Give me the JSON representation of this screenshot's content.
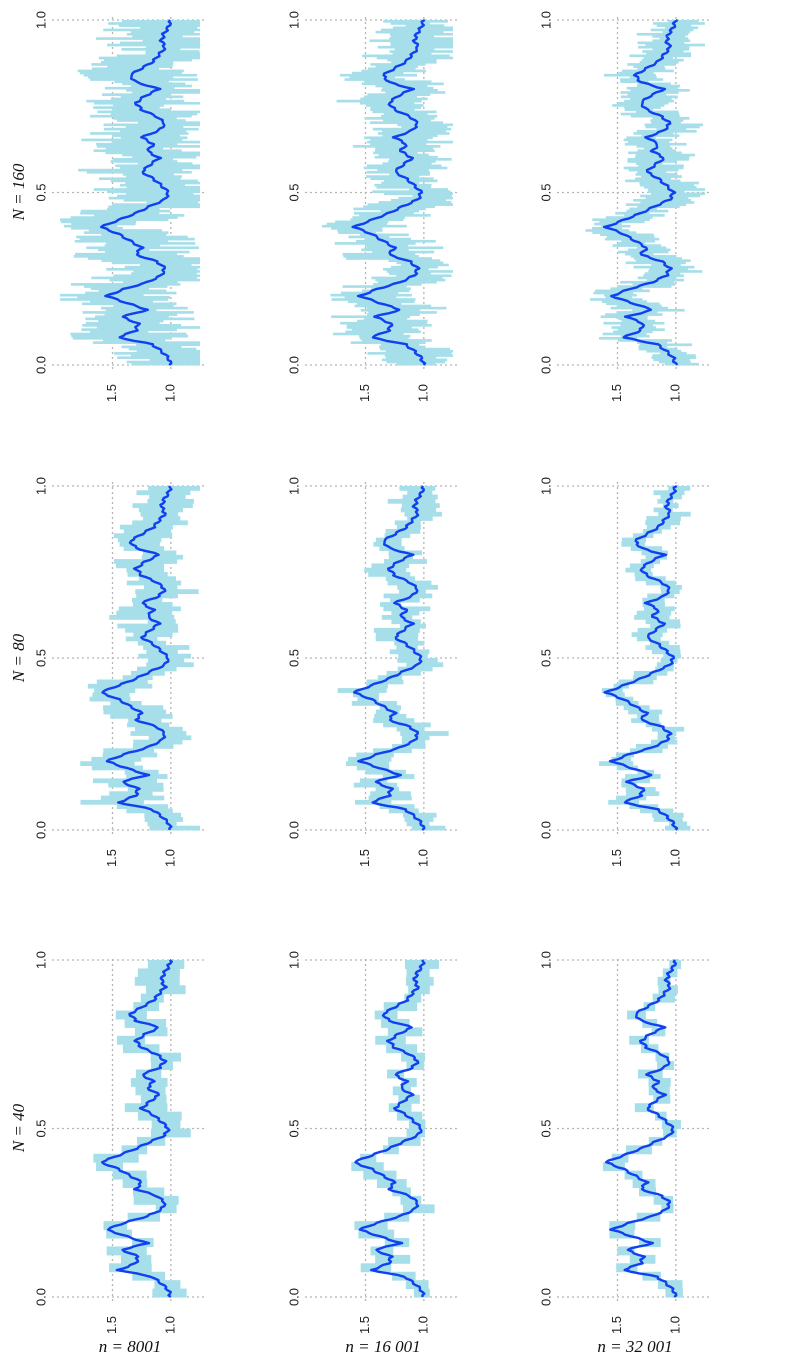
{
  "chart_data": {
    "type": "line",
    "layout": "3x3 grid of panels, figure rotated 90 degrees",
    "col_labels": [
      "n = 8001",
      "n = 16 001",
      "n = 32 001"
    ],
    "row_labels": [
      "N = 40",
      "N = 80",
      "N = 160"
    ],
    "x_ticks": [
      "0.0",
      "0.5",
      "1.0"
    ],
    "y_ticks": [
      "1.0",
      "1.5"
    ],
    "xlim": [
      0,
      1
    ],
    "ylim": [
      0.75,
      1.95
    ],
    "grid": true,
    "colors": {
      "line": "#1040f0",
      "band": "#a6dfe9",
      "grid": "#b4b4b4"
    },
    "series": {
      "center": {
        "x": [
          0.0,
          0.02,
          0.04,
          0.06,
          0.08,
          0.1,
          0.12,
          0.14,
          0.16,
          0.18,
          0.2,
          0.22,
          0.24,
          0.26,
          0.28,
          0.3,
          0.32,
          0.34,
          0.36,
          0.38,
          0.4,
          0.42,
          0.44,
          0.46,
          0.48,
          0.5,
          0.52,
          0.54,
          0.56,
          0.58,
          0.6,
          0.62,
          0.64,
          0.66,
          0.68,
          0.7,
          0.72,
          0.74,
          0.76,
          0.78,
          0.8,
          0.82,
          0.84,
          0.86,
          0.88,
          0.9,
          0.92,
          0.94,
          0.96,
          0.98,
          1.0
        ],
        "y": [
          1.0,
          1.02,
          1.08,
          1.16,
          1.45,
          1.3,
          1.28,
          1.42,
          1.2,
          1.38,
          1.55,
          1.4,
          1.2,
          1.08,
          1.05,
          1.12,
          1.3,
          1.25,
          1.35,
          1.45,
          1.6,
          1.45,
          1.3,
          1.18,
          1.05,
          1.02,
          1.08,
          1.15,
          1.25,
          1.18,
          1.1,
          1.2,
          1.15,
          1.25,
          1.1,
          1.05,
          1.12,
          1.25,
          1.3,
          1.22,
          1.1,
          1.3,
          1.35,
          1.25,
          1.15,
          1.1,
          1.05,
          1.08,
          1.06,
          1.02,
          1.0
        ]
      }
    },
    "band_halfwidth": [
      [
        0.14,
        0.11,
        0.08
      ],
      [
        0.2,
        0.15,
        0.11
      ],
      [
        0.36,
        0.27,
        0.19
      ]
    ]
  }
}
